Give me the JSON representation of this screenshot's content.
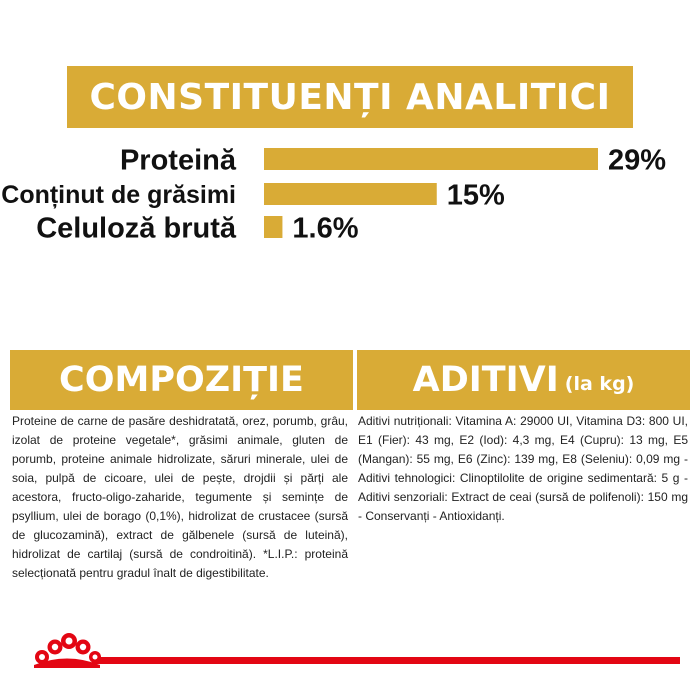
{
  "main_title": "CONSTITUENȚI ANALITICI",
  "chart_data": {
    "type": "bar",
    "orientation": "horizontal",
    "title": "CONSTITUENȚI ANALITICI",
    "categories": [
      "Proteină",
      "Conținut de grăsimi",
      "Celuloză brută"
    ],
    "values": [
      29,
      15,
      1.6
    ],
    "value_labels": [
      "29%",
      "15%",
      "1.6%"
    ],
    "xlim": [
      0,
      29
    ],
    "grid": false,
    "bar_color": "#d9ab36"
  },
  "composition": {
    "title": "COMPOZIȚIE",
    "text": "Proteine de carne de pasăre deshidratată, orez, porumb, grâu, izolat de proteine vegetale*, grăsimi animale, gluten de porumb, proteine animale hidrolizate, săruri minerale, ulei de soia, pulpă de cicoare, ulei de pește, drojdii și părți ale acestora, fructo-oligo-zaharide, tegumente și semințe de psyllium, ulei de borago (0,1%), hidrolizat de crustacee (sursă de glucozamină), extract de gălbenele (sursă de luteină), hidrolizat de cartilaj (sursă de condroitină). *L.I.P.: proteină selecționată pentru gradul înalt de digestibilitate."
  },
  "aditivi": {
    "title": "ADITIVI",
    "title_suffix": "(la kg)",
    "text": "Aditivi nutriționali: Vitamina A: 29000 UI, Vitamina D3: 800 UI, E1 (Fier): 43 mg, E2 (Iod): 4,3 mg, E4 (Cupru): 13 mg, E5 (Mangan): 55 mg, E6 (Zinc): 139 mg, E8 (Seleniu): 0,09 mg - Aditivi tehnologici: Clinoptilolite de origine sedimentară: 5 g - Aditivi senzoriali: Extract de ceai (sursă de polifenoli): 150 mg - Conservanți - Antioxidanți."
  },
  "colors": {
    "gold": "#d9ab36",
    "brand_red": "#e30613"
  },
  "logo_icon": "royal-canin-crown-icon"
}
